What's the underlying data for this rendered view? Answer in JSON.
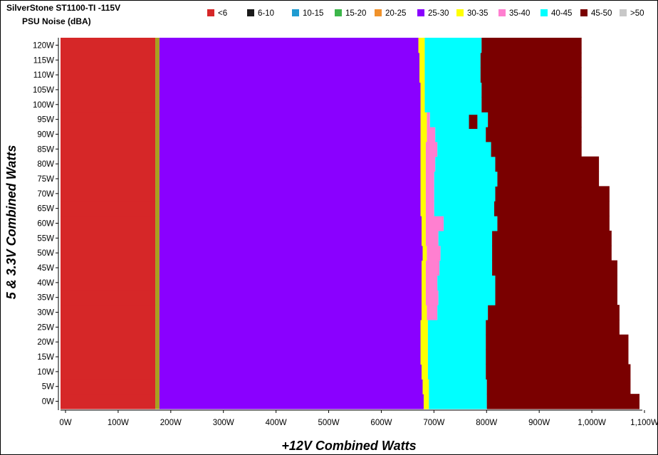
{
  "chart_data": {
    "type": "heatmap",
    "title": "SilverStone ST1100-TI -115V",
    "subtitle": "PSU Noise (dBA)",
    "xlabel": "+12V Combined Watts",
    "ylabel": "5 & 3.3V Combined Watts",
    "xlim": [
      0,
      1100
    ],
    "ylim": [
      0,
      120
    ],
    "x_ticks": [
      "0W",
      "100W",
      "200W",
      "300W",
      "400W",
      "500W",
      "600W",
      "700W",
      "800W",
      "900W",
      "1,000W",
      "1,100W"
    ],
    "y_ticks": [
      "0W",
      "5W",
      "10W",
      "15W",
      "20W",
      "25W",
      "30W",
      "35W",
      "40W",
      "45W",
      "50W",
      "55W",
      "60W",
      "65W",
      "70W",
      "75W",
      "80W",
      "85W",
      "90W",
      "95W",
      "100W",
      "105W",
      "110W",
      "115W",
      "120W"
    ],
    "y_values": [
      0,
      5,
      10,
      15,
      20,
      25,
      30,
      35,
      40,
      45,
      50,
      55,
      60,
      65,
      70,
      75,
      80,
      85,
      90,
      95,
      100,
      105,
      110,
      115,
      120
    ],
    "legend": {
      "placement": "top",
      "entries": [
        {
          "label": "<6",
          "color": "#d62728"
        },
        {
          "label": "6-10",
          "color": "#1a1a1a"
        },
        {
          "label": "10-15",
          "color": "#1f9bd1"
        },
        {
          "label": "15-20",
          "color": "#3cb64a"
        },
        {
          "label": "20-25",
          "color": "#f0922b"
        },
        {
          "label": "25-30",
          "color": "#8a00ff"
        },
        {
          "label": "30-35",
          "color": "#ffff00"
        },
        {
          "label": "35-40",
          "color": "#ff7fd0"
        },
        {
          "label": "40-45",
          "color": "#00ffff"
        },
        {
          "label": "45-50",
          "color": "#7a0000"
        },
        {
          "label": ">50",
          "color": "#c8c8c8"
        }
      ]
    },
    "regions_note": "Noise band boundaries along +12V axis (W) for each 5&3.3V row",
    "band_boundaries": {
      "lt6_end": 180,
      "b20_25_end": 188,
      "b25_30_end": [
        690,
        688,
        686,
        684,
        684,
        684,
        686,
        686,
        686,
        686,
        688,
        686,
        686,
        684,
        684,
        684,
        684,
        684,
        684,
        684,
        684,
        684,
        682,
        682,
        680
      ],
      "b30_35_end": [
        700,
        700,
        698,
        698,
        698,
        698,
        696,
        694,
        694,
        694,
        696,
        694,
        694,
        694,
        694,
        694,
        694,
        694,
        696,
        696,
        692,
        692,
        692,
        692,
        692
      ],
      "b35_40_end": [
        700,
        700,
        698,
        698,
        698,
        698,
        716,
        718,
        716,
        720,
        722,
        718,
        728,
        710,
        710,
        710,
        712,
        716,
        712,
        702,
        692,
        692,
        692,
        692,
        692
      ],
      "b40_45_end": [
        810,
        810,
        808,
        808,
        808,
        808,
        812,
        826,
        826,
        820,
        820,
        820,
        830,
        824,
        826,
        830,
        826,
        818,
        808,
        812,
        800,
        800,
        798,
        798,
        800
      ],
      "b45_50_end": [
        1100,
        1083,
        1083,
        1079,
        1079,
        1062,
        1062,
        1058,
        1058,
        1058,
        1047,
        1047,
        1043,
        1043,
        1043,
        1023,
        1023,
        990,
        990,
        990,
        990,
        990,
        990,
        990,
        990
      ]
    },
    "grid": false
  }
}
